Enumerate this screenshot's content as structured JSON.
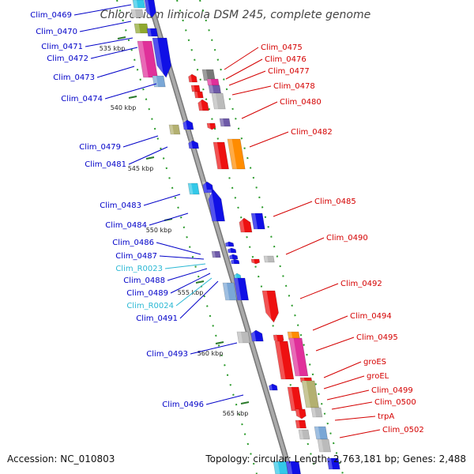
{
  "title": "Chlorobium limicola DSM 245, complete genome",
  "footer": {
    "accession": "Accession: NC_010803",
    "info": "Topology: circular; Length: 2,763,181 bp; Genes: 2,488"
  },
  "colors": {
    "reverse_label": "#0000c8",
    "forward_label": "#d40000",
    "rna_label": "#2ab8d4",
    "backbone": "#999999",
    "tick": "#2a7a2a"
  },
  "ticks": [
    "535 kbp",
    "540 kbp",
    "545 kbp",
    "550 kbp",
    "555 kbp",
    "560 kbp",
    "565 kbp"
  ],
  "left_labels": [
    {
      "text": "Clim_0469",
      "kind": "reverse"
    },
    {
      "text": "Clim_0470",
      "kind": "reverse"
    },
    {
      "text": "Clim_0471",
      "kind": "reverse"
    },
    {
      "text": "Clim_0472",
      "kind": "reverse"
    },
    {
      "text": "Clim_0473",
      "kind": "reverse"
    },
    {
      "text": "Clim_0474",
      "kind": "reverse"
    },
    {
      "text": "Clim_0479",
      "kind": "reverse"
    },
    {
      "text": "Clim_0481",
      "kind": "reverse"
    },
    {
      "text": "Clim_0483",
      "kind": "reverse"
    },
    {
      "text": "Clim_0484",
      "kind": "reverse"
    },
    {
      "text": "Clim_0486",
      "kind": "reverse"
    },
    {
      "text": "Clim_0487",
      "kind": "reverse"
    },
    {
      "text": "Clim_R0023",
      "kind": "rna"
    },
    {
      "text": "Clim_0488",
      "kind": "reverse"
    },
    {
      "text": "Clim_0489",
      "kind": "reverse"
    },
    {
      "text": "Clim_R0024",
      "kind": "rna"
    },
    {
      "text": "Clim_0491",
      "kind": "reverse"
    },
    {
      "text": "Clim_0493",
      "kind": "reverse"
    },
    {
      "text": "Clim_0496",
      "kind": "reverse"
    }
  ],
  "right_labels": [
    {
      "text": "Clim_0475",
      "kind": "forward"
    },
    {
      "text": "Clim_0476",
      "kind": "forward"
    },
    {
      "text": "Clim_0477",
      "kind": "forward"
    },
    {
      "text": "Clim_0478",
      "kind": "forward"
    },
    {
      "text": "Clim_0480",
      "kind": "forward"
    },
    {
      "text": "Clim_0482",
      "kind": "forward"
    },
    {
      "text": "Clim_0485",
      "kind": "forward"
    },
    {
      "text": "Clim_0490",
      "kind": "forward"
    },
    {
      "text": "Clim_0492",
      "kind": "forward"
    },
    {
      "text": "Clim_0494",
      "kind": "forward"
    },
    {
      "text": "Clim_0495",
      "kind": "forward"
    },
    {
      "text": "groES",
      "kind": "forward"
    },
    {
      "text": "groEL",
      "kind": "forward"
    },
    {
      "text": "Clim_0499",
      "kind": "forward"
    },
    {
      "text": "Clim_0500",
      "kind": "forward"
    },
    {
      "text": "trpA",
      "kind": "forward"
    },
    {
      "text": "Clim_0502",
      "kind": "forward"
    }
  ]
}
